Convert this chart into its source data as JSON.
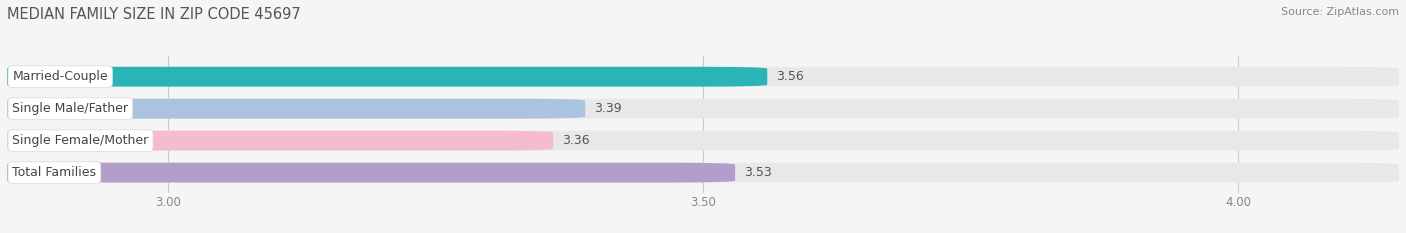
{
  "title": "MEDIAN FAMILY SIZE IN ZIP CODE 45697",
  "source": "Source: ZipAtlas.com",
  "categories": [
    "Married-Couple",
    "Single Male/Father",
    "Single Female/Mother",
    "Total Families"
  ],
  "values": [
    3.56,
    3.39,
    3.36,
    3.53
  ],
  "bar_colors": [
    "#29b5b5",
    "#aac3e0",
    "#f5bcd0",
    "#b39dca"
  ],
  "background_color": "#f5f5f5",
  "bar_bg_color": "#e8e8ea",
  "xlim_min": 2.85,
  "xlim_max": 4.15,
  "xticks": [
    3.0,
    3.5,
    4.0
  ],
  "xtick_labels": [
    "3.00",
    "3.50",
    "4.00"
  ],
  "bar_height": 0.62,
  "label_fontsize": 9.0,
  "value_fontsize": 9.0,
  "title_fontsize": 10.5,
  "source_fontsize": 8.0,
  "title_color": "#555555",
  "source_color": "#888888",
  "label_color": "#444444",
  "value_color": "#555555",
  "grid_color": "#cccccc",
  "tick_color": "#888888"
}
